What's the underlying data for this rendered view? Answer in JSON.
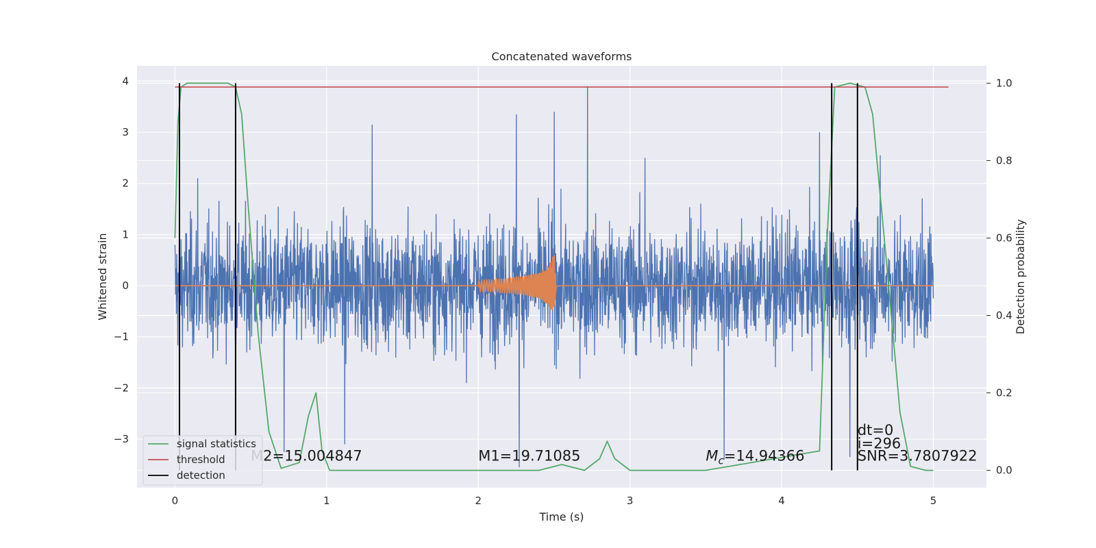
{
  "chart_data": {
    "type": "line",
    "title": "Concatenated waveforms",
    "xlabel": "Time (s)",
    "ylabel": "Whitened strain",
    "ylabel_right": "Detection probability",
    "xlim": [
      -0.25,
      5.35
    ],
    "ylim": [
      -3.95,
      4.3
    ],
    "ylim_right": [
      -0.045,
      1.045
    ],
    "x_ticks": [
      0,
      1,
      2,
      3,
      4,
      5
    ],
    "y_ticks": [
      -3,
      -2,
      -1,
      0,
      1,
      2,
      3,
      4
    ],
    "y_ticks_right": [
      0.0,
      0.2,
      0.4,
      0.6,
      0.8,
      1.0
    ],
    "y_tick_labels": [
      "−3",
      "−2",
      "−1",
      "0",
      "1",
      "2",
      "3",
      "4"
    ],
    "y_tick_labels_right": [
      "0.0",
      "0.2",
      "0.4",
      "0.6",
      "0.8",
      "1.0"
    ],
    "grid": true,
    "legend_position": "lower-left",
    "series": [
      {
        "role": "noisy-strain",
        "color": "#4c72b0",
        "x_range": [
          0,
          5
        ],
        "envelope_positive": 2.2,
        "envelope_negative": -2.4,
        "peaks": [
          [
            0.15,
            2.1
          ],
          [
            1.3,
            3.15
          ],
          [
            2.25,
            3.35
          ],
          [
            2.5,
            3.4
          ],
          [
            2.72,
            3.9
          ],
          [
            3.1,
            2.5
          ],
          [
            4.25,
            3.0
          ],
          [
            4.5,
            2.7
          ],
          [
            4.65,
            2.55
          ],
          [
            0.72,
            -3.25
          ],
          [
            1.12,
            -3.1
          ],
          [
            2.27,
            -3.55
          ],
          [
            3.62,
            -3.4
          ],
          [
            4.45,
            -3.35
          ]
        ]
      },
      {
        "role": "injected-waveform",
        "color": "#dd8452",
        "x": [
          0,
          2.0,
          2.1,
          2.2,
          2.3,
          2.4,
          2.45,
          2.5,
          2.52,
          2.55,
          5.0
        ],
        "amplitude": [
          0,
          0.1,
          0.12,
          0.15,
          0.19,
          0.26,
          0.35,
          0.62,
          0.05,
          0.01,
          0
        ]
      },
      {
        "name": "signal statistics",
        "color": "#55a868",
        "axis": "right",
        "x": [
          0.0,
          0.02,
          0.04,
          0.08,
          0.2,
          0.35,
          0.4,
          0.44,
          0.48,
          0.55,
          0.62,
          0.7,
          0.82,
          0.88,
          0.93,
          0.97,
          1.02,
          1.5,
          2.4,
          2.55,
          2.7,
          2.8,
          2.85,
          2.9,
          3.0,
          3.5,
          4.25,
          4.3,
          4.35,
          4.45,
          4.55,
          4.6,
          4.7,
          4.78,
          4.85,
          4.95,
          5.0
        ],
        "y": [
          0.6,
          0.9,
          0.99,
          1.0,
          1.0,
          1.0,
          0.99,
          0.92,
          0.7,
          0.35,
          0.1,
          0.005,
          0.02,
          0.14,
          0.2,
          0.05,
          0.0,
          0.0,
          0.0,
          0.015,
          0.0,
          0.03,
          0.075,
          0.03,
          0.0,
          0.0,
          0.05,
          0.6,
          0.99,
          1.0,
          0.99,
          0.92,
          0.5,
          0.15,
          0.01,
          0.0,
          0.0
        ]
      },
      {
        "name": "threshold",
        "color": "#c44e52",
        "axis": "right",
        "x": [
          0,
          5.1
        ],
        "y": [
          0.99,
          0.99
        ]
      },
      {
        "name": "detection",
        "color": "#000000",
        "axis": "right",
        "vlines": [
          0.03,
          0.4,
          4.33,
          4.5
        ],
        "ymin": 0.0,
        "ymax": 1.0
      }
    ],
    "annotations": [
      {
        "text": "M2=15.004847",
        "x": 0.5,
        "y": -3.42
      },
      {
        "text": "M1=19.71085",
        "x": 2.0,
        "y": -3.42
      },
      {
        "text": "=14.94366",
        "symbol": "M",
        "subscript": "c",
        "x": 3.5,
        "y": -3.42
      },
      {
        "text": "dt=0",
        "x": 4.5,
        "y": -2.92
      },
      {
        "text": "i=296",
        "x": 4.5,
        "y": -3.18
      },
      {
        "text": "SNR=3.7807922",
        "x": 4.5,
        "y": -3.42
      }
    ]
  }
}
